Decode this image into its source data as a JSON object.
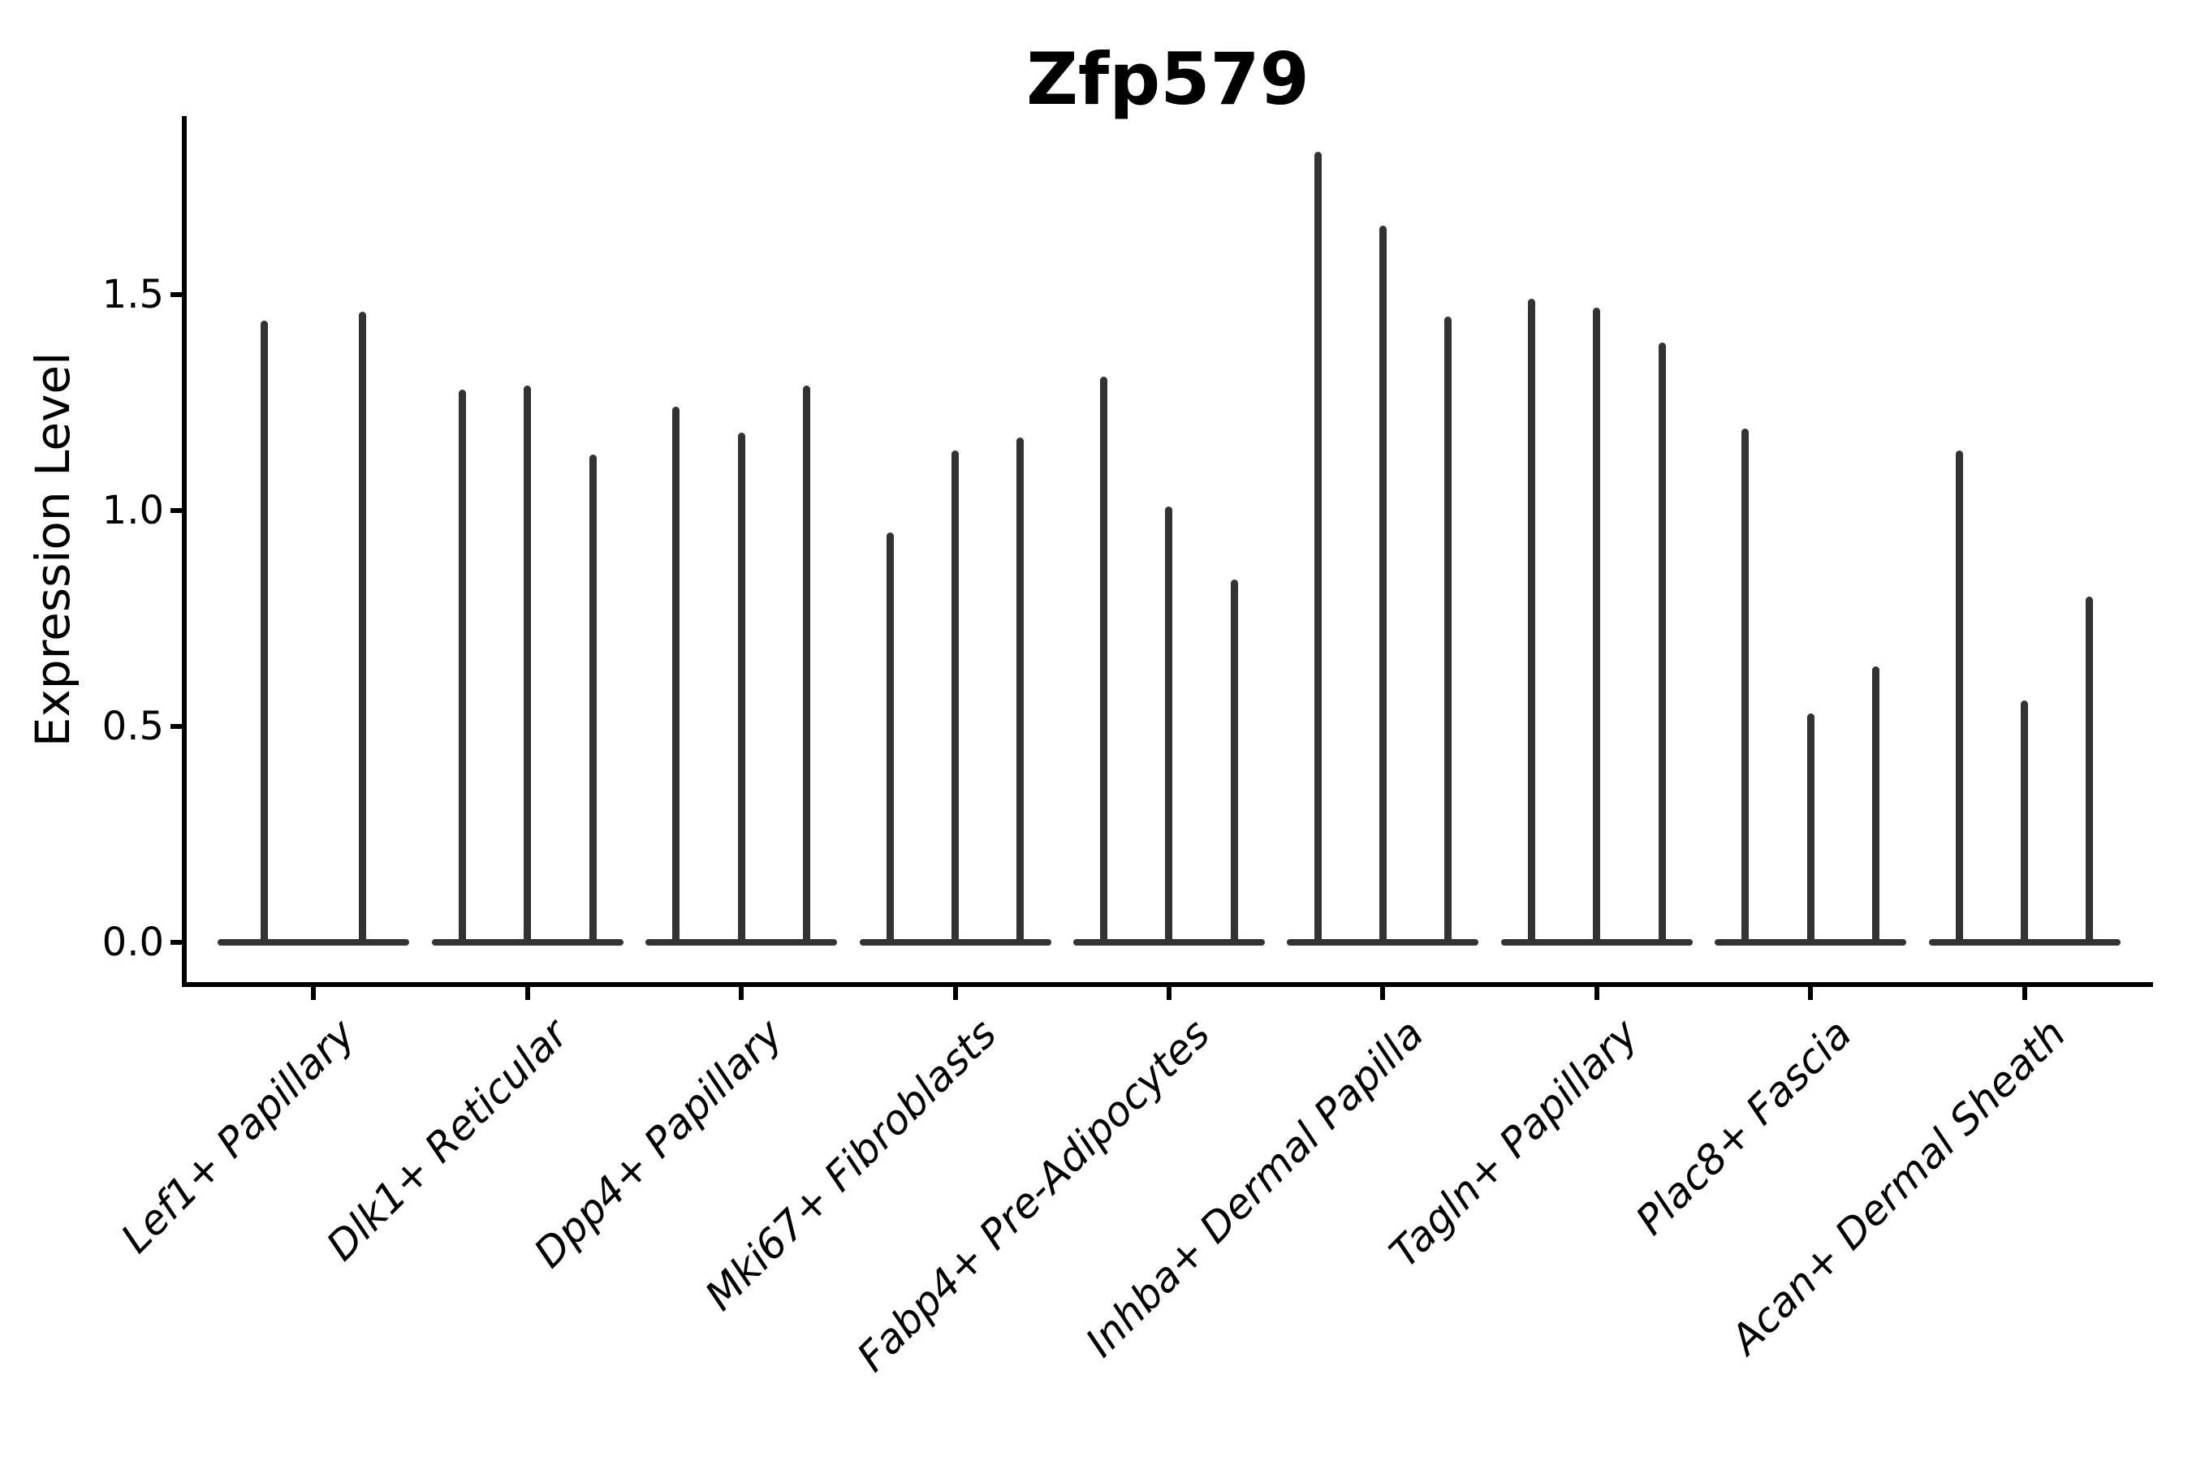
{
  "figure": {
    "title": "Zfp579",
    "background_color": "#ffffff",
    "axis_color": "#000000",
    "violin_line_color": "#333333"
  },
  "chart_data": {
    "type": "violin",
    "title": "Zfp579",
    "xlabel": "",
    "ylabel": "Expression Level",
    "ylim": [
      0,
      1.91
    ],
    "yticks": [
      0.0,
      0.5,
      1.0,
      1.5
    ],
    "ytick_labels": [
      "0.0",
      "0.5",
      "1.0",
      "1.5"
    ],
    "grid": false,
    "legend": null,
    "xtick_label_style": "italic, rotated 45deg, right-anchored",
    "violin_shape_note": "Each violin is a wide flat base at expression 0 with a needle-thin spike rising to the maximum expression value; spike tops are rounded.",
    "categories": [
      "Lef1+ Papillary",
      "Dlk1+ Reticular",
      "Dpp4+ Papillary",
      "Mki67+ Fibroblasts",
      "Fabp4+ Pre-Adipocytes",
      "Inhba+ Dermal Papilla",
      "Tagln+ Papillary",
      "Plac8+ Fascia",
      "Acan+ Dermal Sheath"
    ],
    "series": [
      {
        "category": "Lef1+ Papillary",
        "violin_max_values": [
          1.44,
          1.46
        ]
      },
      {
        "category": "Dlk1+ Reticular",
        "violin_max_values": [
          1.28,
          1.29,
          1.13
        ]
      },
      {
        "category": "Dpp4+ Papillary",
        "violin_max_values": [
          1.24,
          1.18,
          1.29
        ]
      },
      {
        "category": "Mki67+ Fibroblasts",
        "violin_max_values": [
          0.95,
          1.14,
          1.17
        ]
      },
      {
        "category": "Fabp4+ Pre-Adipocytes",
        "violin_max_values": [
          1.31,
          1.01,
          0.84
        ]
      },
      {
        "category": "Inhba+ Dermal Papilla",
        "violin_max_values": [
          1.83,
          1.66,
          1.45
        ]
      },
      {
        "category": "Tagln+ Papillary",
        "violin_max_values": [
          1.49,
          1.47,
          1.39
        ]
      },
      {
        "category": "Plac8+ Fascia",
        "violin_max_values": [
          1.19,
          0.53,
          0.64
        ]
      },
      {
        "category": "Acan+ Dermal Sheath",
        "violin_max_values": [
          1.14,
          0.56,
          0.8
        ]
      }
    ]
  }
}
